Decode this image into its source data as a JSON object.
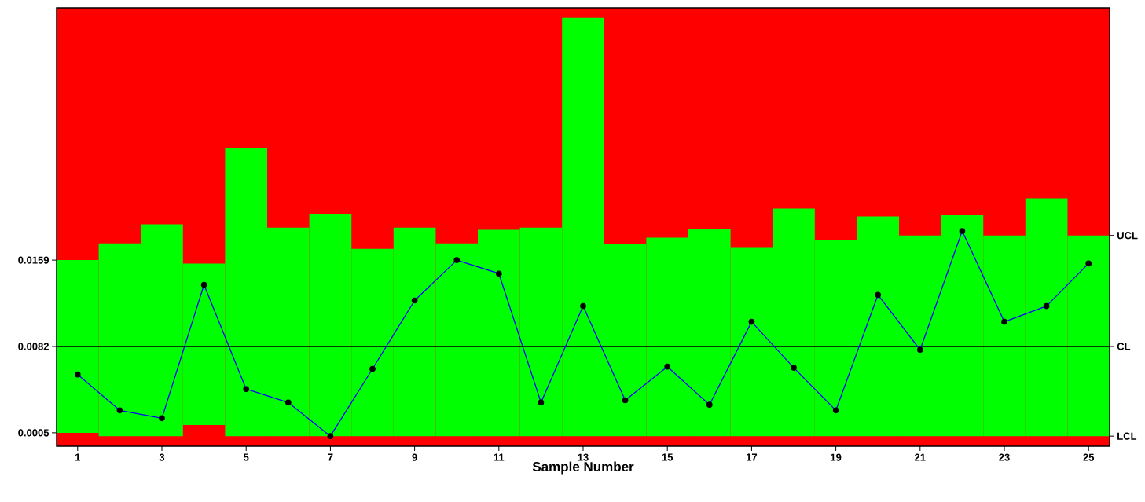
{
  "chart_data": {
    "type": "line",
    "xlabel": "Sample Number",
    "x": [
      1,
      2,
      3,
      4,
      5,
      6,
      7,
      8,
      9,
      10,
      11,
      12,
      13,
      14,
      15,
      16,
      17,
      18,
      19,
      20,
      21,
      22,
      23,
      24,
      25
    ],
    "series": [
      {
        "type": "bar",
        "color": "#00ff00",
        "base": [
          0.0005,
          0.0002,
          0.0002,
          0.0012,
          0.0002,
          0.0002,
          0.0002,
          0.0002,
          0.0002,
          0.0002,
          0.0002,
          0.0002,
          0.0002,
          0.0002,
          0.0002,
          0.0002,
          0.0002,
          0.0002,
          0.0002,
          0.0002,
          0.0002,
          0.0002,
          0.0002,
          0.0002,
          0.0002
        ],
        "values": [
          0.0154,
          0.0172,
          0.0189,
          0.0144,
          0.0257,
          0.0186,
          0.0198,
          0.0167,
          0.0186,
          0.0172,
          0.0184,
          0.0186,
          0.0373,
          0.0171,
          0.0177,
          0.0185,
          0.0168,
          0.0203,
          0.0175,
          0.0196,
          0.0179,
          0.0197,
          0.0179,
          0.0212,
          0.0179
        ]
      },
      {
        "color": "#0000ff",
        "values": [
          0.0057,
          0.0025,
          0.0018,
          0.0137,
          0.0044,
          0.0032,
          0.0002,
          0.0062,
          0.0123,
          0.0159,
          0.0147,
          0.0032,
          0.0118,
          0.0034,
          0.0064,
          0.003,
          0.0104,
          0.0063,
          0.0025,
          0.0128,
          0.0079,
          0.0185,
          0.0104,
          0.0118,
          0.0156
        ]
      }
    ],
    "ref_lines": [
      {
        "axis": "y",
        "value": 0.0082,
        "label": "CL",
        "color": "#000000"
      }
    ],
    "annotations": [
      "UCL",
      "LCL"
    ],
    "xlim": [
      0.5,
      25.5
    ],
    "xticks": [
      1,
      3,
      5,
      7,
      9,
      11,
      13,
      15,
      17,
      19,
      21,
      23,
      25
    ],
    "ylim": [
      -0.0007,
      0.0384
    ],
    "yticks": [
      0.0005,
      0.0082,
      0.0159
    ],
    "marker": "circle",
    "line_style": "solid"
  }
}
